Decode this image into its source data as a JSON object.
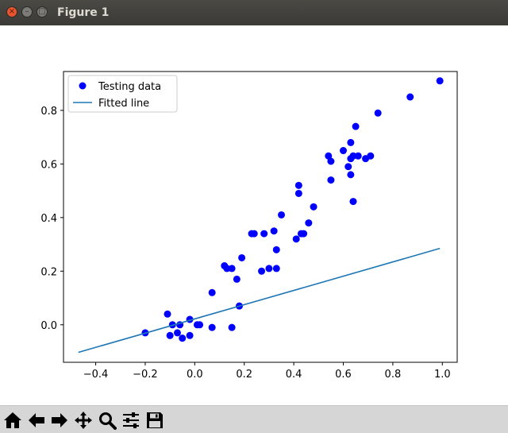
{
  "window": {
    "title": "Figure 1",
    "close_glyph": "×",
    "minimize_glyph": "–",
    "maximize_glyph": "□"
  },
  "toolbar": {
    "buttons": [
      {
        "name": "home-button",
        "icon": "home-icon"
      },
      {
        "name": "back-button",
        "icon": "arrow-left-icon"
      },
      {
        "name": "forward-button",
        "icon": "arrow-right-icon"
      },
      {
        "name": "pan-button",
        "icon": "move-icon"
      },
      {
        "name": "zoom-button",
        "icon": "magnifier-icon"
      },
      {
        "name": "subplots-button",
        "icon": "sliders-icon"
      },
      {
        "name": "save-button",
        "icon": "floppy-icon"
      }
    ]
  },
  "chart_data": {
    "type": "scatter",
    "title": "",
    "xlabel": "",
    "ylabel": "",
    "xlim": [
      -0.53,
      1.06
    ],
    "ylim": [
      -0.14,
      0.945
    ],
    "xticks": [
      -0.4,
      -0.2,
      0.0,
      0.2,
      0.4,
      0.6,
      0.8,
      1.0
    ],
    "xtick_labels": [
      "−0.4",
      "−0.2",
      "0.0",
      "0.2",
      "0.4",
      "0.6",
      "0.8",
      "1.0"
    ],
    "yticks": [
      0.0,
      0.2,
      0.4,
      0.6,
      0.8
    ],
    "ytick_labels": [
      "0.0",
      "0.2",
      "0.4",
      "0.6",
      "0.8"
    ],
    "grid": false,
    "legend_position": "top-left",
    "series": [
      {
        "name": "Testing data",
        "kind": "scatter",
        "color": "#0000ff",
        "x": [
          -0.2,
          -0.11,
          -0.1,
          -0.09,
          -0.07,
          -0.06,
          -0.05,
          -0.02,
          -0.02,
          0.01,
          0.02,
          0.07,
          0.07,
          0.12,
          0.13,
          0.15,
          0.15,
          0.17,
          0.18,
          0.19,
          0.23,
          0.24,
          0.27,
          0.28,
          0.3,
          0.32,
          0.33,
          0.33,
          0.35,
          0.41,
          0.42,
          0.42,
          0.43,
          0.44,
          0.46,
          0.48,
          0.54,
          0.55,
          0.55,
          0.6,
          0.62,
          0.63,
          0.63,
          0.63,
          0.64,
          0.64,
          0.65,
          0.66,
          0.69,
          0.71,
          0.74,
          0.87,
          0.99
        ],
        "y": [
          -0.03,
          0.04,
          -0.04,
          0.0,
          -0.03,
          0.0,
          -0.05,
          0.02,
          -0.04,
          0.0,
          0.0,
          -0.01,
          0.12,
          0.22,
          0.21,
          -0.01,
          0.21,
          0.17,
          0.07,
          0.25,
          0.34,
          0.34,
          0.2,
          0.34,
          0.21,
          0.35,
          0.28,
          0.21,
          0.41,
          0.32,
          0.52,
          0.49,
          0.34,
          0.34,
          0.38,
          0.44,
          0.63,
          0.61,
          0.54,
          0.65,
          0.59,
          0.56,
          0.62,
          0.68,
          0.63,
          0.46,
          0.74,
          0.63,
          0.62,
          0.63,
          0.79,
          0.85,
          0.91
        ]
      },
      {
        "name": "Fitted line",
        "kind": "line",
        "color": "#1f77b4",
        "x": [
          -0.47,
          0.99
        ],
        "y": [
          -0.103,
          0.285
        ]
      }
    ]
  }
}
